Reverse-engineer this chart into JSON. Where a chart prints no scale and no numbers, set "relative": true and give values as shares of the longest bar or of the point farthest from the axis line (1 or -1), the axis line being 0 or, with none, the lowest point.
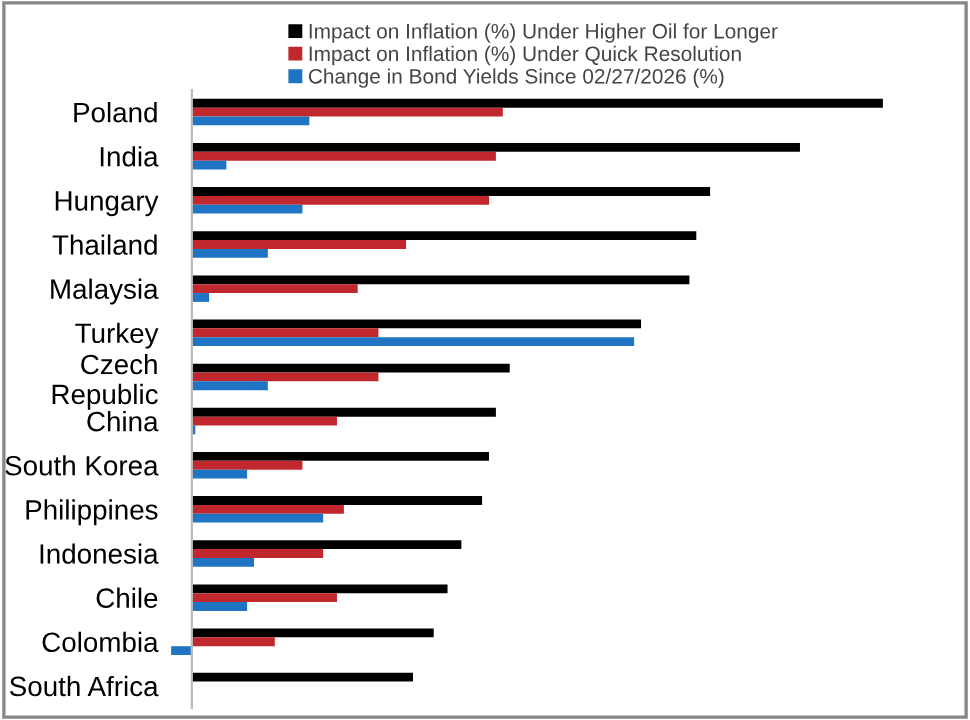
{
  "chart_data": {
    "type": "bar",
    "orientation": "horizontal",
    "relative": true,
    "legend": "top",
    "grid": false,
    "categories": [
      "Poland",
      "India",
      "Hungary",
      "Thailand",
      "Malaysia",
      "Turkey",
      "Czech\nRepublic",
      "China",
      "South Korea",
      "Philippines",
      "Indonesia",
      "Chile",
      "Colombia",
      "South Africa"
    ],
    "series": [
      {
        "name": "Impact on Inflation (%) Under Higher Oil for Longer",
        "color": "#000000",
        "values": [
          1.0,
          0.88,
          0.75,
          0.73,
          0.72,
          0.65,
          0.46,
          0.44,
          0.43,
          0.42,
          0.39,
          0.37,
          0.35,
          0.32
        ]
      },
      {
        "name": "Impact on Inflation (%) Under Quick Resolution",
        "color": "#c0282d",
        "values": [
          0.45,
          0.44,
          0.43,
          0.31,
          0.24,
          0.27,
          0.27,
          0.21,
          0.16,
          0.22,
          0.19,
          0.21,
          0.12,
          null
        ]
      },
      {
        "name": "Change in Bond Yields Since 02/27/2026 (%)",
        "color": "#1f74c4",
        "values": [
          0.17,
          0.05,
          0.16,
          0.11,
          0.025,
          0.64,
          0.11,
          0.005,
          0.08,
          0.19,
          0.09,
          0.08,
          -0.03,
          null
        ]
      }
    ]
  }
}
